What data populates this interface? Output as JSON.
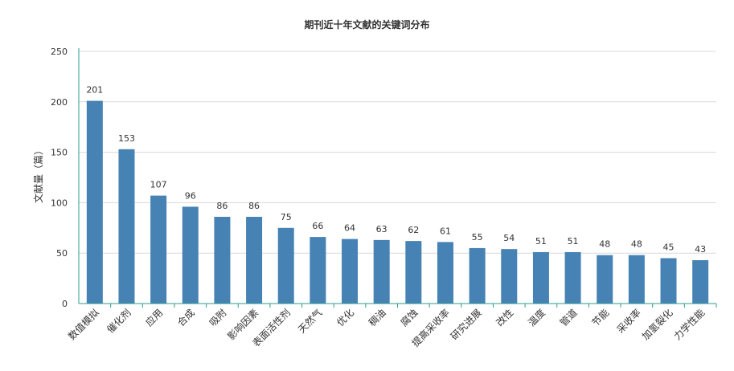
{
  "chart_data": {
    "type": "bar",
    "title": "期刊近十年文献的关键词分布",
    "xlabel": "",
    "ylabel": "文献量（篇）",
    "ylim": [
      0,
      250
    ],
    "yticks": [
      0,
      50,
      100,
      150,
      200,
      250
    ],
    "grid": true,
    "legend": "none",
    "categories": [
      "数值模拟",
      "催化剂",
      "应用",
      "合成",
      "吸附",
      "影响因素",
      "表面活性剂",
      "天然气",
      "优化",
      "稠油",
      "腐蚀",
      "提高采收率",
      "研究进展",
      "改性",
      "温度",
      "管道",
      "节能",
      "采收率",
      "加氢裂化",
      "力学性能"
    ],
    "values": [
      201,
      153,
      107,
      96,
      86,
      86,
      75,
      66,
      64,
      63,
      62,
      61,
      55,
      54,
      51,
      51,
      48,
      48,
      45,
      43
    ],
    "colors": {
      "bar": "#4682b4",
      "axis": "#2a9d8f",
      "grid": "#d9d9d9",
      "text": "#333333"
    }
  }
}
